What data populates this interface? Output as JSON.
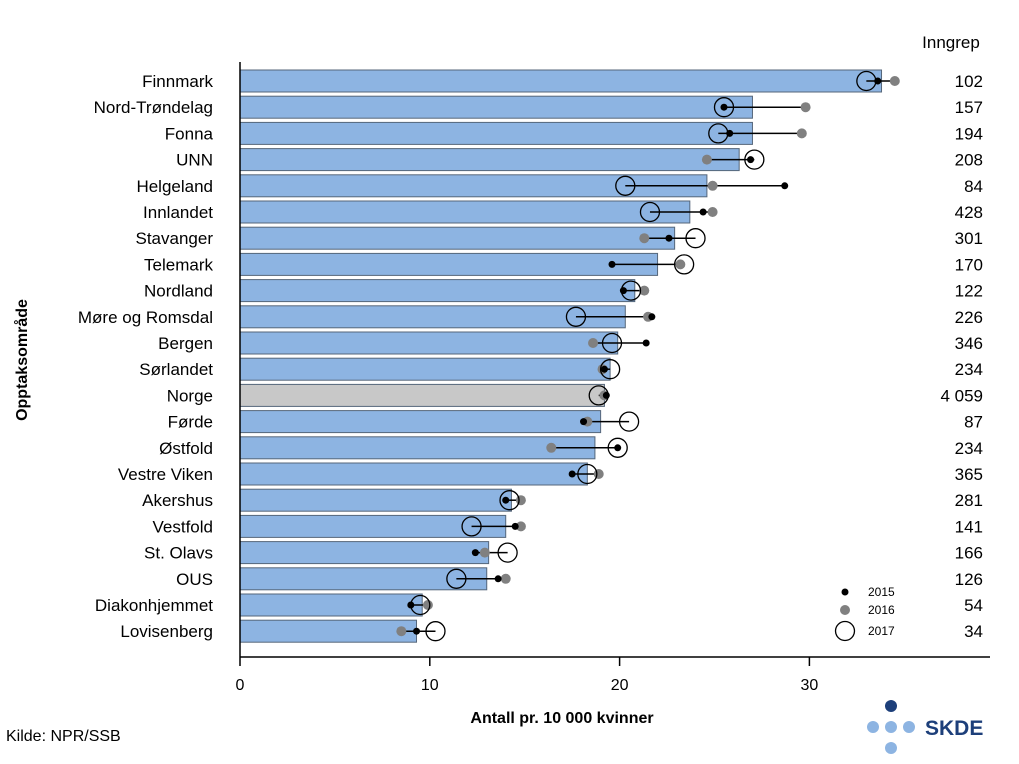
{
  "chart_data": {
    "type": "bar",
    "xlabel": "Antall pr. 10 000 kvinner",
    "ylabel": "Opptaksområde",
    "count_header": "Inngrep",
    "xlim": [
      0,
      39.5
    ],
    "xticks": [
      0,
      10,
      20,
      30
    ],
    "source": "Kilde: NPR/SSB",
    "legend": [
      {
        "name": "2015",
        "style": "small-black-dot"
      },
      {
        "name": "2016",
        "style": "grey-dot"
      },
      {
        "name": "2017",
        "style": "open-circle"
      }
    ],
    "legend_position": "bottom-right",
    "colors": {
      "bar": "#8db4e2",
      "bar_highlight": "#c8c8c8",
      "bar_edge": "#55667a",
      "dot2015": "#000000",
      "dot2016": "#808080"
    },
    "rows": [
      {
        "name": "Finnmark",
        "bar": 33.8,
        "y2015": 33.6,
        "y2016": 34.5,
        "y2017": 33.0,
        "count": "102",
        "highlight": false
      },
      {
        "name": "Nord-Trøndelag",
        "bar": 27.0,
        "y2015": 25.5,
        "y2016": 29.8,
        "y2017": 25.5,
        "count": "157",
        "highlight": false
      },
      {
        "name": "Fonna",
        "bar": 27.0,
        "y2015": 25.8,
        "y2016": 29.6,
        "y2017": 25.2,
        "count": "194",
        "highlight": false
      },
      {
        "name": "UNN",
        "bar": 26.3,
        "y2015": 26.9,
        "y2016": 24.6,
        "y2017": 27.1,
        "count": "208",
        "highlight": false
      },
      {
        "name": "Helgeland",
        "bar": 24.6,
        "y2015": 28.7,
        "y2016": 24.9,
        "y2017": 20.3,
        "count": "84",
        "highlight": false
      },
      {
        "name": "Innlandet",
        "bar": 23.7,
        "y2015": 24.4,
        "y2016": 24.9,
        "y2017": 21.6,
        "count": "428",
        "highlight": false
      },
      {
        "name": "Stavanger",
        "bar": 22.9,
        "y2015": 22.6,
        "y2016": 21.3,
        "y2017": 24.0,
        "count": "301",
        "highlight": false
      },
      {
        "name": "Telemark",
        "bar": 22.0,
        "y2015": 19.6,
        "y2016": 23.2,
        "y2017": 23.4,
        "count": "170",
        "highlight": false
      },
      {
        "name": "Nordland",
        "bar": 20.8,
        "y2015": 20.2,
        "y2016": 21.3,
        "y2017": 20.6,
        "count": "122",
        "highlight": false
      },
      {
        "name": "Møre og Romsdal",
        "bar": 20.3,
        "y2015": 21.7,
        "y2016": 21.5,
        "y2017": 17.7,
        "count": "226",
        "highlight": false
      },
      {
        "name": "Bergen",
        "bar": 19.9,
        "y2015": 21.4,
        "y2016": 18.6,
        "y2017": 19.6,
        "count": "346",
        "highlight": false
      },
      {
        "name": "Sørlandet",
        "bar": 19.5,
        "y2015": 19.2,
        "y2016": 19.1,
        "y2017": 19.5,
        "count": "234",
        "highlight": false
      },
      {
        "name": "Norge",
        "bar": 19.2,
        "y2015": 19.3,
        "y2016": 19.2,
        "y2017": 18.9,
        "count": "4 059",
        "highlight": true
      },
      {
        "name": "Førde",
        "bar": 19.0,
        "y2015": 18.1,
        "y2016": 18.3,
        "y2017": 20.5,
        "count": "87",
        "highlight": false
      },
      {
        "name": "Østfold",
        "bar": 18.7,
        "y2015": 19.9,
        "y2016": 16.4,
        "y2017": 19.9,
        "count": "234",
        "highlight": false
      },
      {
        "name": "Vestre Viken",
        "bar": 18.3,
        "y2015": 17.5,
        "y2016": 18.9,
        "y2017": 18.3,
        "count": "365",
        "highlight": false
      },
      {
        "name": "Akershus",
        "bar": 14.3,
        "y2015": 14.0,
        "y2016": 14.8,
        "y2017": 14.2,
        "count": "281",
        "highlight": false
      },
      {
        "name": "Vestfold",
        "bar": 14.0,
        "y2015": 14.5,
        "y2016": 14.8,
        "y2017": 12.2,
        "count": "141",
        "highlight": false
      },
      {
        "name": "St. Olavs",
        "bar": 13.1,
        "y2015": 12.4,
        "y2016": 12.9,
        "y2017": 14.1,
        "count": "166",
        "highlight": false
      },
      {
        "name": "OUS",
        "bar": 13.0,
        "y2015": 13.6,
        "y2016": 14.0,
        "y2017": 11.4,
        "count": "126",
        "highlight": false
      },
      {
        "name": "Diakonhjemmet",
        "bar": 9.6,
        "y2015": 9.0,
        "y2016": 9.9,
        "y2017": 9.5,
        "count": "54",
        "highlight": false
      },
      {
        "name": "Lovisenberg",
        "bar": 9.3,
        "y2015": 9.3,
        "y2016": 8.5,
        "y2017": 10.3,
        "count": "34",
        "highlight": false
      }
    ]
  },
  "logo": {
    "text": "SKDE"
  }
}
